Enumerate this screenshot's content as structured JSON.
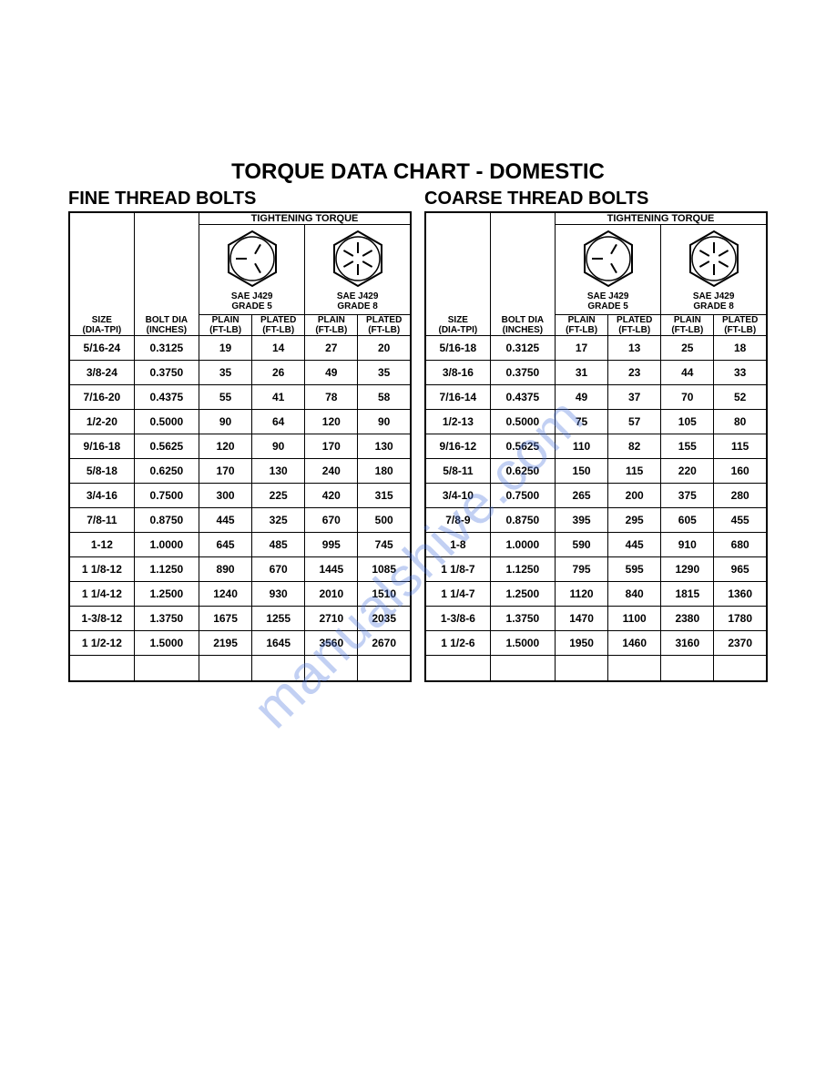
{
  "title": "TORQUE DATA CHART - DOMESTIC",
  "watermark": "manualshive.com",
  "common": {
    "tightening_torque_label": "TIGHTENING TORQUE",
    "grade5_label_1": "SAE J429",
    "grade5_label_2": "GRADE 5",
    "grade8_label_1": "SAE J429",
    "grade8_label_2": "GRADE 8",
    "size_hdr_1": "SIZE",
    "size_hdr_2": "(DIA-TPI)",
    "dia_hdr_1": "BOLT DIA",
    "dia_hdr_2": "(INCHES)",
    "plain_hdr_1": "PLAIN",
    "plain_hdr_2": "(FT-LB)",
    "plated_hdr_1": "PLATED",
    "plated_hdr_2": "(FT-LB)"
  },
  "fine": {
    "title": "FINE THREAD BOLTS",
    "rows": [
      {
        "s": "5/16-24",
        "d": "0.3125",
        "g5p": "19",
        "g5c": "14",
        "g8p": "27",
        "g8c": "20"
      },
      {
        "s": "3/8-24",
        "d": "0.3750",
        "g5p": "35",
        "g5c": "26",
        "g8p": "49",
        "g8c": "35"
      },
      {
        "s": "7/16-20",
        "d": "0.4375",
        "g5p": "55",
        "g5c": "41",
        "g8p": "78",
        "g8c": "58"
      },
      {
        "s": "1/2-20",
        "d": "0.5000",
        "g5p": "90",
        "g5c": "64",
        "g8p": "120",
        "g8c": "90"
      },
      {
        "s": "9/16-18",
        "d": "0.5625",
        "g5p": "120",
        "g5c": "90",
        "g8p": "170",
        "g8c": "130"
      },
      {
        "s": "5/8-18",
        "d": "0.6250",
        "g5p": "170",
        "g5c": "130",
        "g8p": "240",
        "g8c": "180"
      },
      {
        "s": "3/4-16",
        "d": "0.7500",
        "g5p": "300",
        "g5c": "225",
        "g8p": "420",
        "g8c": "315"
      },
      {
        "s": "7/8-11",
        "d": "0.8750",
        "g5p": "445",
        "g5c": "325",
        "g8p": "670",
        "g8c": "500"
      },
      {
        "s": "1-12",
        "d": "1.0000",
        "g5p": "645",
        "g5c": "485",
        "g8p": "995",
        "g8c": "745"
      },
      {
        "s": "1 1/8-12",
        "d": "1.1250",
        "g5p": "890",
        "g5c": "670",
        "g8p": "1445",
        "g8c": "1085"
      },
      {
        "s": "1 1/4-12",
        "d": "1.2500",
        "g5p": "1240",
        "g5c": "930",
        "g8p": "2010",
        "g8c": "1510"
      },
      {
        "s": "1-3/8-12",
        "d": "1.3750",
        "g5p": "1675",
        "g5c": "1255",
        "g8p": "2710",
        "g8c": "2035"
      },
      {
        "s": "1 1/2-12",
        "d": "1.5000",
        "g5p": "2195",
        "g5c": "1645",
        "g8p": "3560",
        "g8c": "2670"
      }
    ]
  },
  "coarse": {
    "title": "COARSE THREAD BOLTS",
    "rows": [
      {
        "s": "5/16-18",
        "d": "0.3125",
        "g5p": "17",
        "g5c": "13",
        "g8p": "25",
        "g8c": "18"
      },
      {
        "s": "3/8-16",
        "d": "0.3750",
        "g5p": "31",
        "g5c": "23",
        "g8p": "44",
        "g8c": "33"
      },
      {
        "s": "7/16-14",
        "d": "0.4375",
        "g5p": "49",
        "g5c": "37",
        "g8p": "70",
        "g8c": "52"
      },
      {
        "s": "1/2-13",
        "d": "0.5000",
        "g5p": "75",
        "g5c": "57",
        "g8p": "105",
        "g8c": "80"
      },
      {
        "s": "9/16-12",
        "d": "0.5625",
        "g5p": "110",
        "g5c": "82",
        "g8p": "155",
        "g8c": "115"
      },
      {
        "s": "5/8-11",
        "d": "0.6250",
        "g5p": "150",
        "g5c": "115",
        "g8p": "220",
        "g8c": "160"
      },
      {
        "s": "3/4-10",
        "d": "0.7500",
        "g5p": "265",
        "g5c": "200",
        "g8p": "375",
        "g8c": "280"
      },
      {
        "s": "7/8-9",
        "d": "0.8750",
        "g5p": "395",
        "g5c": "295",
        "g8p": "605",
        "g8c": "455"
      },
      {
        "s": "1-8",
        "d": "1.0000",
        "g5p": "590",
        "g5c": "445",
        "g8p": "910",
        "g8c": "680"
      },
      {
        "s": "1 1/8-7",
        "d": "1.1250",
        "g5p": "795",
        "g5c": "595",
        "g8p": "1290",
        "g8c": "965"
      },
      {
        "s": "1 1/4-7",
        "d": "1.2500",
        "g5p": "1120",
        "g5c": "840",
        "g8p": "1815",
        "g8c": "1360"
      },
      {
        "s": "1-3/8-6",
        "d": "1.3750",
        "g5p": "1470",
        "g5c": "1100",
        "g8p": "2380",
        "g8c": "1780"
      },
      {
        "s": "1 1/2-6",
        "d": "1.5000",
        "g5p": "1950",
        "g5c": "1460",
        "g8p": "3160",
        "g8c": "2370"
      }
    ]
  },
  "style": {
    "text_color": "#000000",
    "border_color": "#000000",
    "bg_color": "#ffffff",
    "watermark_color": "rgba(80,120,220,0.35)",
    "col_widths_pct": [
      19,
      19,
      15.5,
      15.5,
      15.5,
      15.5
    ]
  }
}
